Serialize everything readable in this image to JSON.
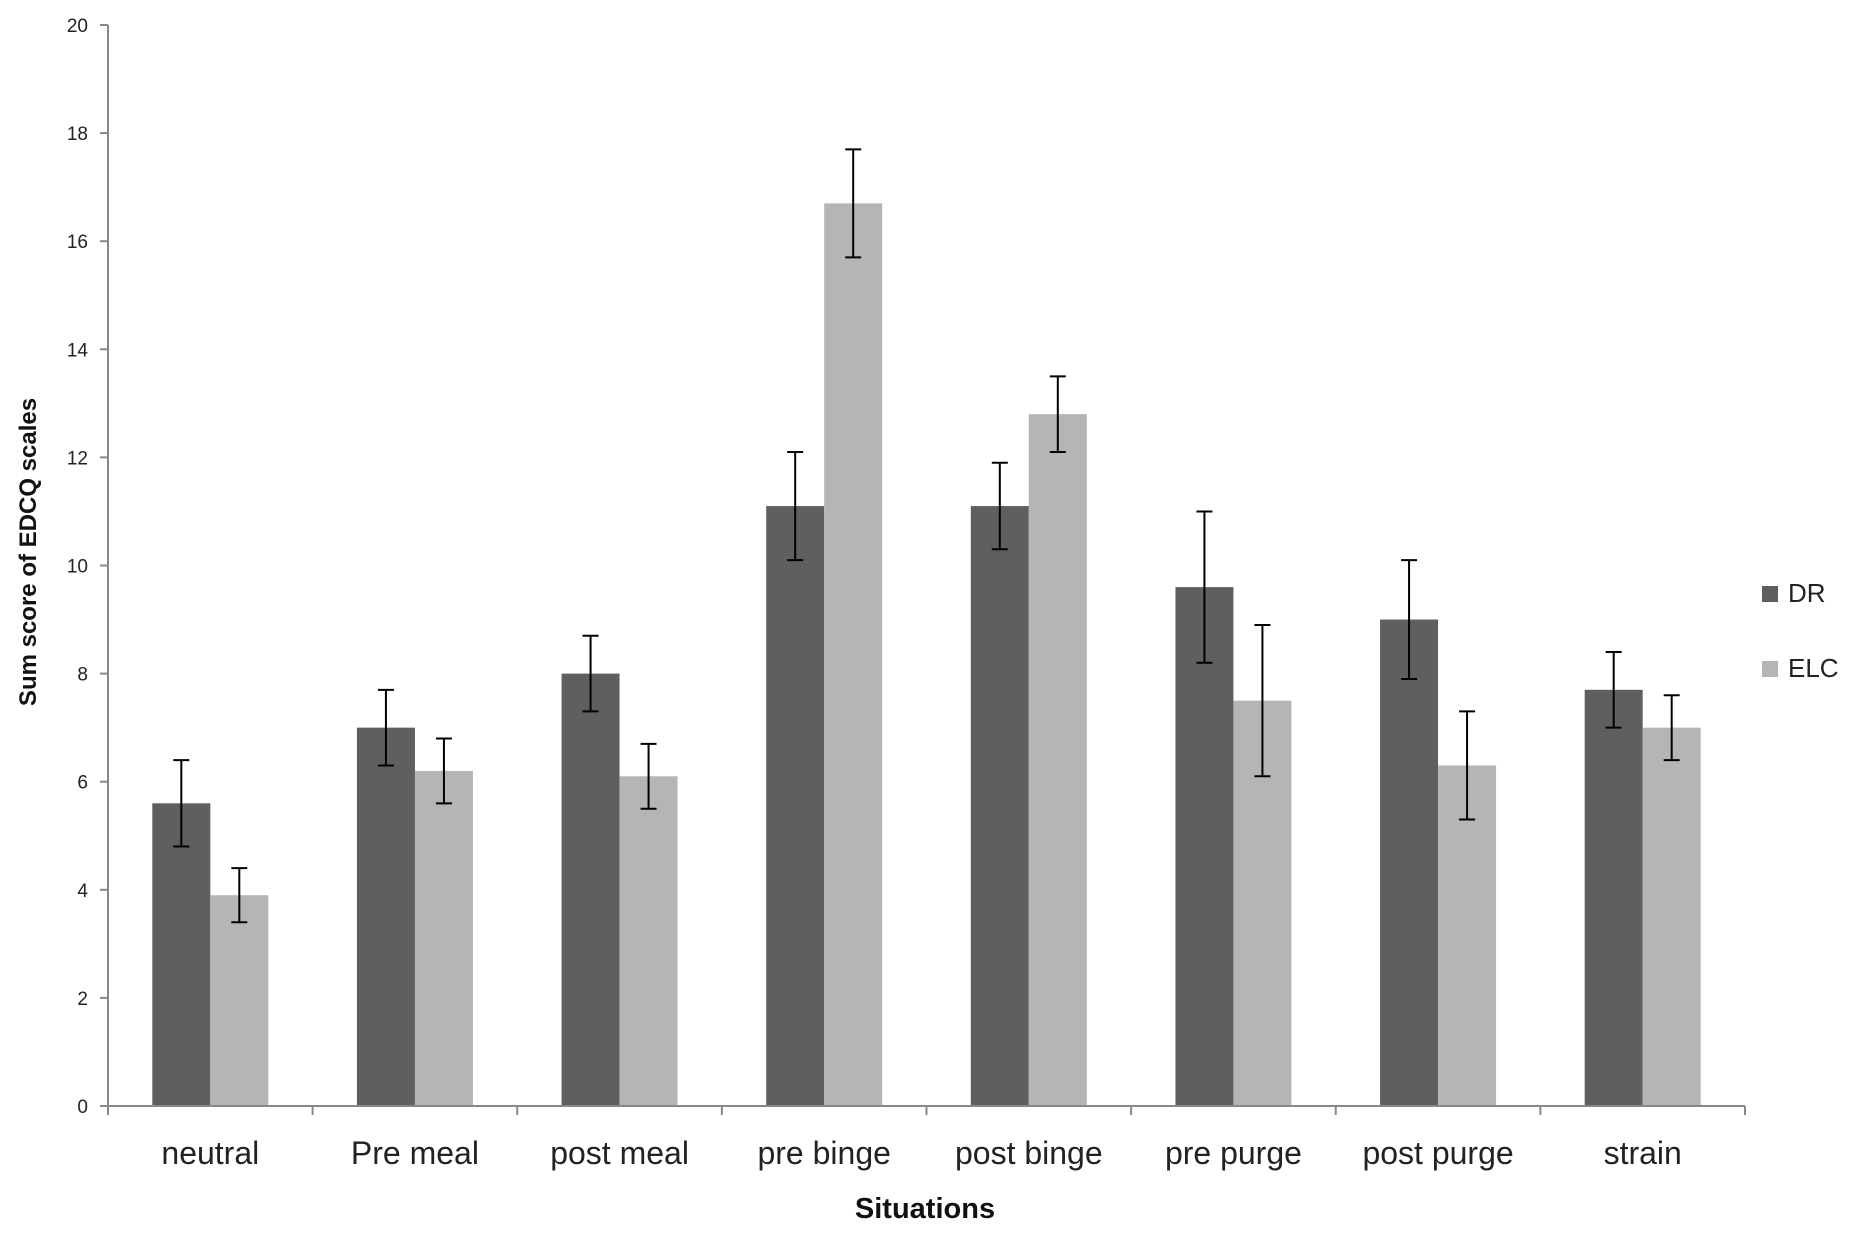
{
  "chart_data": {
    "type": "bar",
    "title": "",
    "xlabel": "Situations",
    "ylabel": "Sum score of EDCQ scales",
    "ylim": [
      0,
      20
    ],
    "yticks": [
      0,
      2,
      4,
      6,
      8,
      10,
      12,
      14,
      16,
      18,
      20
    ],
    "categories": [
      "neutral",
      "Pre meal",
      "post meal",
      "pre binge",
      "post binge",
      "pre purge",
      "post purge",
      "strain"
    ],
    "series": [
      {
        "name": "DR",
        "color": "#5f5f5f",
        "values": [
          5.6,
          7.0,
          8.0,
          11.1,
          11.1,
          9.6,
          9.0,
          7.7
        ],
        "errors": [
          0.8,
          0.7,
          0.7,
          1.0,
          0.8,
          1.4,
          1.1,
          0.7
        ]
      },
      {
        "name": "ELC",
        "color": "#b5b5b5",
        "values": [
          3.9,
          6.2,
          6.1,
          16.7,
          12.8,
          7.5,
          6.3,
          7.0
        ],
        "errors": [
          0.5,
          0.6,
          0.6,
          1.0,
          0.7,
          1.4,
          1.0,
          0.6
        ]
      }
    ],
    "legend": "right",
    "grid": false
  }
}
